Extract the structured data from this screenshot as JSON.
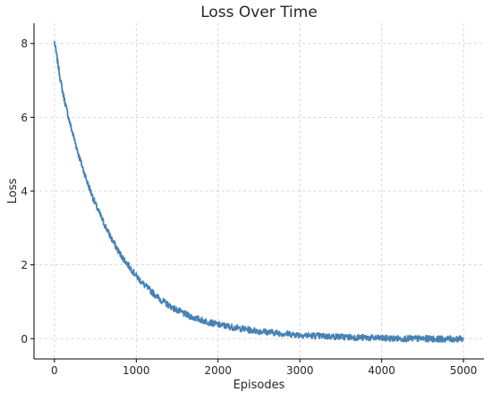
{
  "chart_data": {
    "type": "line",
    "title": "Loss Over Time",
    "xlabel": "Episodes",
    "ylabel": "Loss",
    "xlim": [
      -250,
      5250
    ],
    "ylim": [
      -0.55,
      8.55
    ],
    "xticks": [
      0,
      1000,
      2000,
      3000,
      4000,
      5000
    ],
    "yticks": [
      0,
      2,
      4,
      6,
      8
    ],
    "grid": true,
    "series": [
      {
        "color": "#4682b4",
        "x": [
          0,
          10,
          25,
          50,
          75,
          100,
          150,
          200,
          250,
          300,
          350,
          400,
          450,
          500,
          600,
          700,
          800,
          900,
          1000,
          1100,
          1200,
          1300,
          1400,
          1500,
          1600,
          1700,
          1800,
          1900,
          2000,
          2200,
          2400,
          2600,
          2800,
          3000,
          3250,
          3500,
          3750,
          4000,
          4250,
          4500,
          4750,
          5000
        ],
        "values": [
          8.05,
          7.9,
          7.7,
          7.35,
          7.0,
          6.7,
          6.2,
          5.75,
          5.35,
          4.95,
          4.6,
          4.25,
          3.95,
          3.65,
          3.15,
          2.7,
          2.3,
          2.0,
          1.7,
          1.45,
          1.25,
          1.05,
          0.9,
          0.77,
          0.66,
          0.57,
          0.5,
          0.44,
          0.38,
          0.3,
          0.23,
          0.18,
          0.14,
          0.1,
          0.07,
          0.05,
          0.03,
          0.01,
          0.0,
          0.0,
          -0.01,
          -0.01
        ]
      }
    ]
  }
}
